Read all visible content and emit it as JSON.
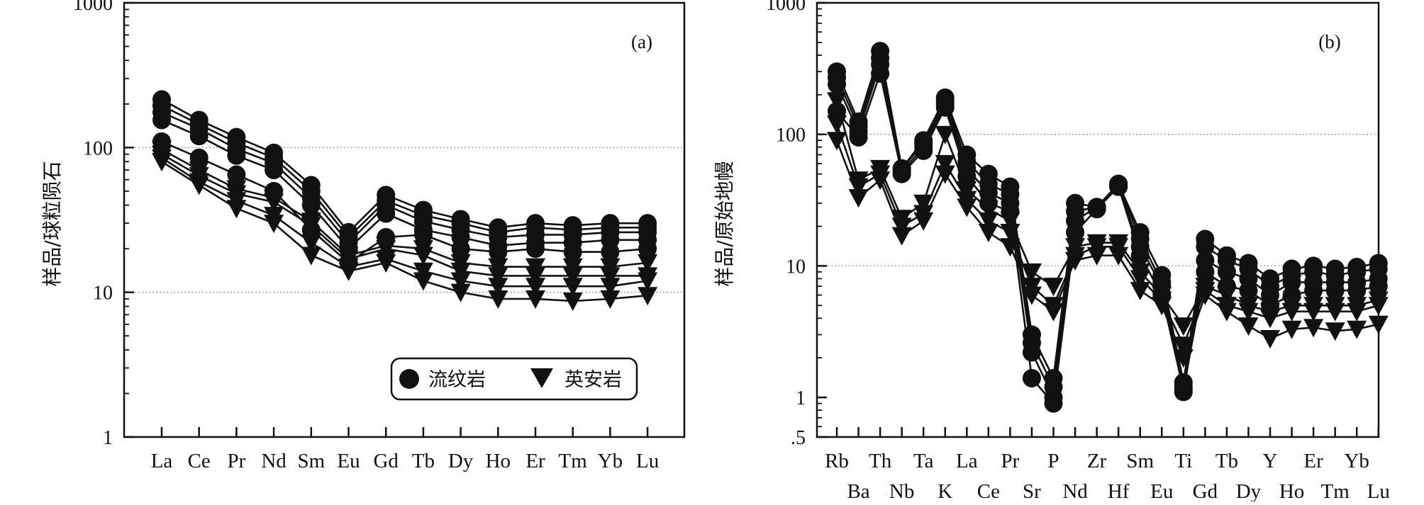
{
  "legend": {
    "rhyolite": "流纹岩",
    "dacite": "英安岩"
  },
  "chart_data": [
    {
      "type": "line",
      "panel_label": "(a)",
      "ylabel": "样品/球粒陨石",
      "yscale": "log",
      "ylim": [
        1,
        1000
      ],
      "y_ticks": [
        {
          "value": 1,
          "label": "1"
        },
        {
          "value": 10,
          "label": "10"
        },
        {
          "value": 100,
          "label": "100"
        },
        {
          "value": 1000,
          "label": "1000"
        }
      ],
      "gridlines": [
        10,
        100
      ],
      "legend_position": "bottom-right",
      "categories": [
        "La",
        "Ce",
        "Pr",
        "Nd",
        "Sm",
        "Eu",
        "Gd",
        "Tb",
        "Dy",
        "Ho",
        "Er",
        "Tm",
        "Yb",
        "Lu"
      ],
      "series": [
        {
          "group": "rhyolite",
          "values": [
            215,
            155,
            118,
            92,
            55,
            26,
            47,
            37,
            32,
            28,
            30,
            29,
            30,
            30
          ]
        },
        {
          "group": "rhyolite",
          "values": [
            195,
            145,
            108,
            85,
            50,
            24,
            43,
            34,
            30,
            26,
            28,
            27,
            28,
            28
          ]
        },
        {
          "group": "rhyolite",
          "values": [
            175,
            135,
            98,
            78,
            45,
            22,
            40,
            31,
            27,
            24,
            25,
            25,
            26,
            26
          ]
        },
        {
          "group": "rhyolite",
          "values": [
            155,
            120,
            88,
            70,
            40,
            20,
            35,
            27,
            24,
            21,
            22,
            22,
            23,
            23
          ]
        },
        {
          "group": "rhyolite",
          "values": [
            110,
            85,
            65,
            50,
            27,
            16,
            24,
            25,
            20,
            19,
            20,
            19,
            19,
            20
          ]
        },
        {
          "group": "dacite",
          "values": [
            97,
            70,
            52,
            45,
            31,
            18,
            21,
            20,
            16,
            15,
            15,
            15,
            15,
            16
          ]
        },
        {
          "group": "dacite",
          "values": [
            90,
            64,
            48,
            42,
            29,
            17,
            20,
            18,
            14,
            13,
            13,
            13,
            13,
            13
          ]
        },
        {
          "group": "dacite",
          "values": [
            85,
            58,
            43,
            34,
            22,
            15,
            17,
            14,
            12,
            11,
            11,
            11,
            11,
            12
          ]
        },
        {
          "group": "dacite",
          "values": [
            80,
            55,
            38,
            30,
            18,
            14,
            16,
            12,
            10,
            9,
            9,
            8.7,
            9,
            9.5
          ]
        }
      ]
    },
    {
      "type": "line",
      "panel_label": "(b)",
      "ylabel": "样品/原始地幔",
      "yscale": "log",
      "ylim": [
        0.5,
        1000
      ],
      "y_ticks": [
        {
          "value": 0.5,
          "label": ".5"
        },
        {
          "value": 1,
          "label": "1"
        },
        {
          "value": 10,
          "label": "10"
        },
        {
          "value": 100,
          "label": "100"
        },
        {
          "value": 1000,
          "label": "1000"
        }
      ],
      "gridlines": [
        10,
        100
      ],
      "categories": [
        "Rb",
        "Ba",
        "Th",
        "Nb",
        "Ta",
        "K",
        "La",
        "Ce",
        "Pr",
        "Sr",
        "P",
        "Nd",
        "Zr",
        "Hf",
        "Sm",
        "Eu",
        "Ti",
        "Gd",
        "Tb",
        "Dy",
        "Y",
        "Ho",
        "Er",
        "Tm",
        "Yb",
        "Lu"
      ],
      "series": [
        {
          "group": "rhyolite",
          "values": [
            300,
            125,
            430,
            55,
            90,
            190,
            70,
            50,
            40,
            3,
            1.4,
            30,
            28,
            42,
            18,
            8.5,
            1.3,
            16,
            12,
            10.5,
            8,
            9.5,
            10,
            9.5,
            9.8,
            10.5
          ]
        },
        {
          "group": "rhyolite",
          "values": [
            270,
            115,
            380,
            55,
            85,
            180,
            62,
            42,
            35,
            2.6,
            1.2,
            26,
            28,
            42,
            16,
            7.5,
            1.2,
            14,
            11,
            9.5,
            7,
            8.5,
            9,
            8.5,
            9,
            9.5
          ]
        },
        {
          "group": "rhyolite",
          "values": [
            240,
            105,
            340,
            52,
            80,
            170,
            55,
            36,
            30,
            2.2,
            1.0,
            22,
            28,
            40,
            14,
            7,
            1.1,
            11,
            9,
            8,
            6,
            7.5,
            7.5,
            7.5,
            7.5,
            8
          ]
        },
        {
          "group": "rhyolite",
          "values": [
            150,
            95,
            290,
            50,
            75,
            160,
            48,
            30,
            26,
            1.4,
            0.9,
            18,
            27,
            40,
            12,
            6,
            1.15,
            9,
            7,
            6.5,
            5,
            6,
            6.5,
            6.5,
            6.5,
            7
          ]
        },
        {
          "group": "dacite",
          "values": [
            180,
            45,
            55,
            23,
            30,
            100,
            38,
            27,
            22,
            9,
            7,
            14,
            15,
            15,
            9,
            6,
            3.5,
            7,
            6,
            5,
            4.5,
            5,
            5,
            5,
            5,
            5.5
          ]
        },
        {
          "group": "dacite",
          "values": [
            120,
            40,
            50,
            20,
            25,
            60,
            32,
            22,
            18,
            7,
            5,
            12,
            14,
            14,
            8,
            5.5,
            2.5,
            6.5,
            5,
            4.5,
            4,
            4.5,
            4.5,
            4.5,
            4.5,
            5
          ]
        },
        {
          "group": "dacite",
          "values": [
            90,
            33,
            45,
            17,
            22,
            50,
            28,
            18,
            14,
            6,
            4.5,
            11,
            12,
            12,
            6.5,
            5,
            2,
            6,
            4.5,
            3.5,
            2.8,
            3.3,
            3.4,
            3.2,
            3.3,
            3.6
          ]
        }
      ]
    }
  ]
}
